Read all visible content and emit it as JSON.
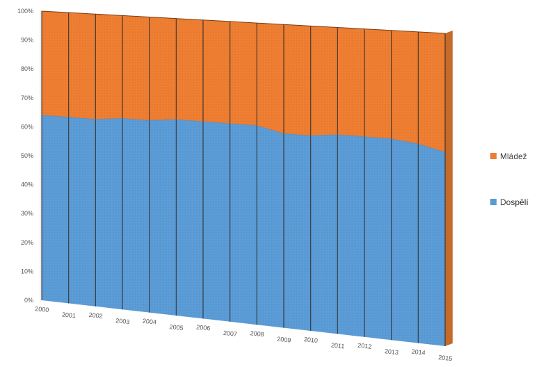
{
  "chart_data": {
    "type": "area",
    "stacked": "percent",
    "three_d": true,
    "x": [
      "2000",
      "2001",
      "2002",
      "2003",
      "2004",
      "2005",
      "2006",
      "2007",
      "2008",
      "2009",
      "2010",
      "2011",
      "2012",
      "2013",
      "2014",
      "2015"
    ],
    "y_ticks": [
      "0%",
      "10%",
      "20%",
      "30%",
      "40%",
      "50%",
      "60%",
      "70%",
      "80%",
      "90%",
      "100%"
    ],
    "ylim": [
      0,
      100
    ],
    "series": [
      {
        "name": "Dospělí",
        "color": "#5b9bd5",
        "values": [
          64,
          64,
          64,
          65,
          65,
          66,
          66,
          66,
          66,
          64,
          64,
          65,
          65,
          65,
          64,
          62
        ]
      },
      {
        "name": "Mládež",
        "color": "#ed7d31",
        "values": [
          36,
          36,
          36,
          35,
          35,
          34,
          34,
          34,
          34,
          36,
          36,
          35,
          35,
          35,
          36,
          38
        ]
      }
    ],
    "legend": {
      "position": "right",
      "items": [
        {
          "label": "Mládež",
          "color": "#ed7d31"
        },
        {
          "label": "Dospělí",
          "color": "#5b9bd5"
        }
      ]
    },
    "grid": false
  }
}
